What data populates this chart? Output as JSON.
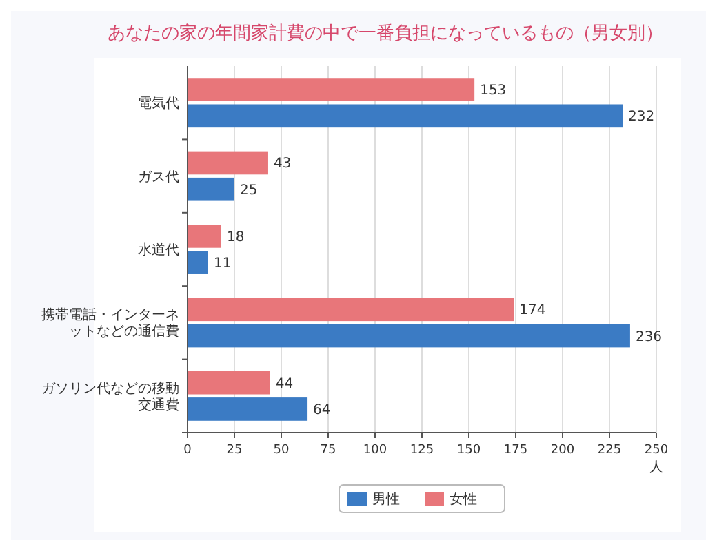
{
  "chart_data": {
    "type": "bar",
    "orientation": "horizontal",
    "title": "あなたの家の年間家計費の中で一番負担になっているもの（男女別）",
    "categories": [
      "電気代",
      "ガス代",
      "水道代",
      "携帯電話・インターネットなどの通信費",
      "ガソリン代などの移動交通費"
    ],
    "series": [
      {
        "name": "男性",
        "color": "#3b7bc4",
        "values": [
          232,
          25,
          11,
          236,
          64
        ]
      },
      {
        "name": "女性",
        "color": "#e8767a",
        "values": [
          153,
          43,
          18,
          174,
          44
        ]
      }
    ],
    "xlim": [
      0,
      250
    ],
    "xticks": [
      0,
      25,
      50,
      75,
      100,
      125,
      150,
      175,
      200,
      225,
      250
    ],
    "xlabel": "人",
    "grid": "x",
    "legend": "bottom",
    "data_labels": true
  }
}
